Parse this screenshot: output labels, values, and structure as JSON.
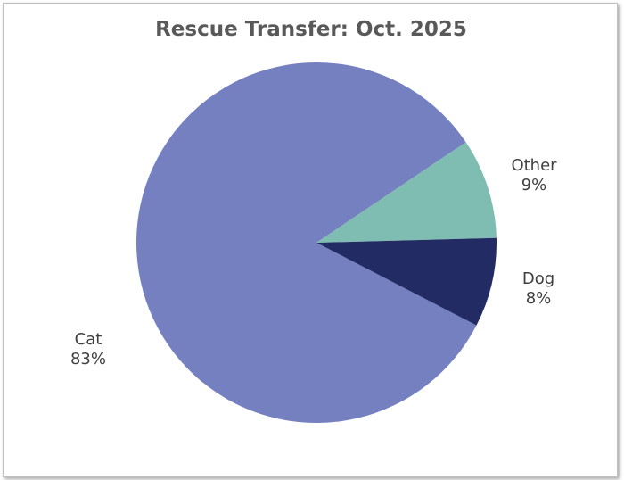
{
  "chart_data": {
    "type": "pie",
    "title": "Rescue Transfer: Oct. 2025",
    "slices": [
      {
        "label": "Cat",
        "percent_label": "83%",
        "value": 83,
        "color": "#7480c0"
      },
      {
        "label": "Other",
        "percent_label": "9%",
        "value": 9,
        "color": "#7fbcb2"
      },
      {
        "label": "Dog",
        "percent_label": "8%",
        "value": 8,
        "color": "#222b63"
      }
    ],
    "legend": "none"
  }
}
